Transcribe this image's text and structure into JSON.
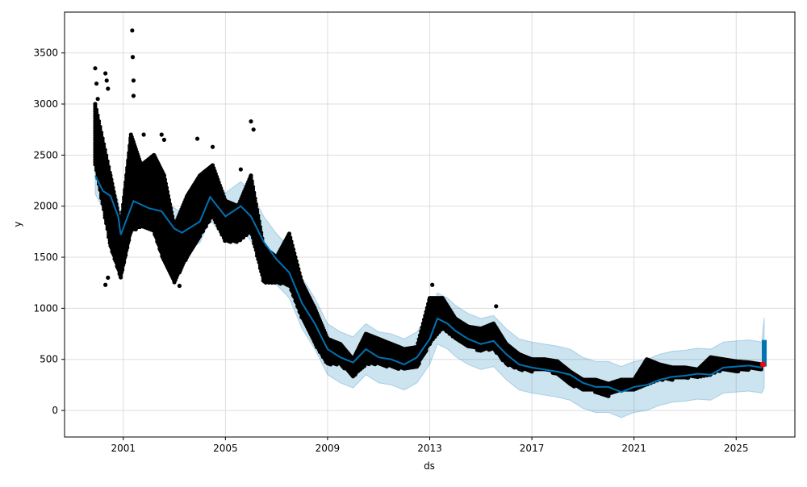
{
  "chart_data": {
    "type": "line",
    "title": "",
    "xlabel": "ds",
    "ylabel": "y",
    "xlim": [
      1998.7,
      2027.3
    ],
    "ylim": [
      -260,
      3900
    ],
    "grid": true,
    "x_ticks": [
      2001,
      2005,
      2009,
      2013,
      2017,
      2021,
      2025
    ],
    "x_tick_labels": [
      "2001",
      "2005",
      "2009",
      "2013",
      "2017",
      "2021",
      "2025"
    ],
    "y_ticks": [
      0,
      500,
      1000,
      1500,
      2000,
      2500,
      3000,
      3500
    ],
    "y_tick_labels": [
      "0",
      "500",
      "1000",
      "1500",
      "2000",
      "2500",
      "3000",
      "3500"
    ],
    "colors": {
      "forecast": "#0072b2",
      "band": "#0072b2",
      "observed": "#000000",
      "last_point": "#ff0000"
    },
    "forecast": {
      "name": "yhat",
      "x": [
        1999.9,
        2000.2,
        2000.5,
        2000.8,
        2000.9,
        2001.4,
        2002.0,
        2002.5,
        2003.0,
        2003.3,
        2004.0,
        2004.4,
        2005.0,
        2005.6,
        2006.0,
        2006.5,
        2007.0,
        2007.5,
        2008.0,
        2008.5,
        2009.0,
        2009.5,
        2010.0,
        2010.5,
        2011.0,
        2011.5,
        2012.0,
        2012.5,
        2013.0,
        2013.3,
        2013.7,
        2014.0,
        2014.5,
        2015.0,
        2015.5,
        2016.0,
        2016.5,
        2017.0,
        2017.5,
        2018.0,
        2018.5,
        2019.0,
        2019.5,
        2020.0,
        2020.5,
        2021.0,
        2021.5,
        2022.0,
        2022.5,
        2023.0,
        2023.5,
        2024.0,
        2024.5,
        2025.0,
        2025.5,
        2026.0
      ],
      "y": [
        2300,
        2150,
        2100,
        1900,
        1720,
        2050,
        1980,
        1950,
        1780,
        1740,
        1850,
        2090,
        1900,
        2000,
        1900,
        1650,
        1480,
        1350,
        1050,
        850,
        600,
        520,
        470,
        600,
        520,
        500,
        450,
        520,
        700,
        900,
        850,
        780,
        700,
        650,
        680,
        550,
        450,
        420,
        400,
        380,
        350,
        270,
        230,
        230,
        180,
        230,
        250,
        300,
        330,
        340,
        360,
        350,
        420,
        430,
        440,
        420
      ],
      "band_halfwidth": [
        180,
        170,
        160,
        160,
        160,
        170,
        180,
        190,
        200,
        200,
        210,
        220,
        230,
        240,
        240,
        250,
        250,
        250,
        250,
        250,
        250,
        250,
        250,
        250,
        250,
        250,
        250,
        250,
        250,
        250,
        250,
        250,
        250,
        250,
        250,
        250,
        250,
        250,
        250,
        250,
        250,
        250,
        250,
        250,
        250,
        250,
        250,
        250,
        250,
        250,
        250,
        250,
        250,
        250,
        250,
        250
      ]
    },
    "future_forecast": {
      "x": 2026.1,
      "yhat_range": [
        430,
        690
      ],
      "band": [
        220,
        910
      ]
    },
    "observed_range": {
      "x": [
        1999.9,
        2000.5,
        2000.9,
        2001.3,
        2001.7,
        2002.2,
        2002.6,
        2003.0,
        2003.5,
        2004.0,
        2004.5,
        2005.0,
        2005.5,
        2006.0,
        2006.5,
        2007.0,
        2007.5,
        2008.0,
        2008.5,
        2009.0,
        2009.5,
        2010.0,
        2010.5,
        2011.0,
        2011.5,
        2012.0,
        2012.5,
        2013.0,
        2013.5,
        2014.0,
        2014.5,
        2015.0,
        2015.5,
        2016.0,
        2016.5,
        2017.0,
        2017.5,
        2018.0,
        2018.5,
        2019.0,
        2019.5,
        2020.0,
        2020.5,
        2021.0,
        2021.5,
        2022.0,
        2022.5,
        2023.0,
        2023.5,
        2024.0,
        2024.5,
        2025.0,
        2025.5,
        2026.0
      ],
      "min": [
        2400,
        1600,
        1300,
        1750,
        1800,
        1750,
        1450,
        1250,
        1500,
        1700,
        1900,
        1650,
        1650,
        1750,
        1250,
        1250,
        1220,
        900,
        650,
        450,
        450,
        330,
        450,
        450,
        420,
        400,
        420,
        650,
        800,
        700,
        620,
        580,
        600,
        450,
        400,
        380,
        400,
        350,
        250,
        200,
        180,
        140,
        200,
        200,
        250,
        300,
        300,
        320,
        320,
        350,
        400,
        380,
        400,
        400
      ],
      "max": [
        3000,
        2300,
        1800,
        2700,
        2400,
        2500,
        2300,
        1800,
        2100,
        2300,
        2400,
        2050,
        2000,
        2300,
        1600,
        1500,
        1730,
        1250,
        1000,
        700,
        650,
        500,
        750,
        700,
        650,
        600,
        620,
        1100,
        1100,
        900,
        820,
        800,
        850,
        650,
        550,
        500,
        500,
        480,
        380,
        300,
        300,
        260,
        300,
        300,
        500,
        450,
        420,
        420,
        400,
        520,
        500,
        480,
        470,
        450
      ]
    },
    "observed_outliers": {
      "x": [
        1999.9,
        1999.95,
        2000.0,
        2000.3,
        2000.35,
        2000.4,
        2000.3,
        2000.4,
        2001.35,
        2001.37,
        2001.4,
        2001.4,
        2001.8,
        2002.5,
        2002.6,
        2003.2,
        2003.9,
        2004.5,
        2006.0,
        2006.1,
        2005.6,
        2015.6,
        2013.1
      ],
      "y": [
        3350,
        3200,
        3050,
        3300,
        3230,
        3150,
        1230,
        1300,
        3720,
        3460,
        3230,
        3080,
        2700,
        2700,
        2650,
        1220,
        2660,
        2580,
        2830,
        2750,
        2360,
        1020,
        1230
      ]
    },
    "last_observed": {
      "x": 2026.05,
      "y": 450
    }
  }
}
